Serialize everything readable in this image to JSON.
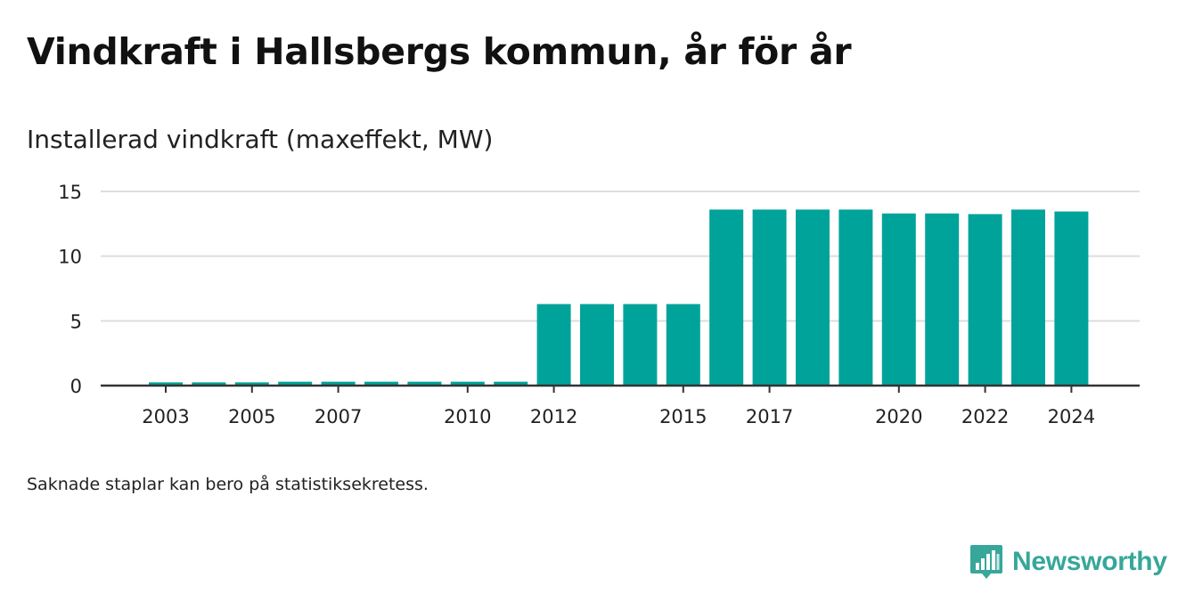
{
  "header": {
    "title": "Vindkraft i Hallsbergs kommun, år för år",
    "subtitle": "Installerad vindkraft (maxeffekt, MW)"
  },
  "footnote": "Saknade staplar kan bero på statistiksekretess.",
  "brand": {
    "name": "Newsworthy",
    "icon": "newsworthy-chart-icon",
    "color": "#36a79a"
  },
  "chart_data": {
    "type": "bar",
    "categories": [
      "2003",
      "2004",
      "2005",
      "2006",
      "2007",
      "2008",
      "2009",
      "2010",
      "2011",
      "2012",
      "2013",
      "2014",
      "2015",
      "2016",
      "2017",
      "2018",
      "2019",
      "2020",
      "2021",
      "2022",
      "2023",
      "2024"
    ],
    "values": [
      0.25,
      0.25,
      0.25,
      0.3,
      0.3,
      0.3,
      0.3,
      0.3,
      0.3,
      6.3,
      6.3,
      6.3,
      6.3,
      13.6,
      13.6,
      13.6,
      13.6,
      13.3,
      13.3,
      13.25,
      13.6,
      13.45
    ],
    "x_tick_labels": [
      "2003",
      "2005",
      "2007",
      "2010",
      "2012",
      "2015",
      "2017",
      "2020",
      "2022",
      "2024"
    ],
    "y_ticks": [
      0,
      5,
      10,
      15
    ],
    "ylim": [
      0,
      15
    ],
    "xlabel": "",
    "ylabel": "",
    "grid": true,
    "bar_color": "#00a39a",
    "grid_color": "#dddddd",
    "axis_color": "#333333"
  }
}
